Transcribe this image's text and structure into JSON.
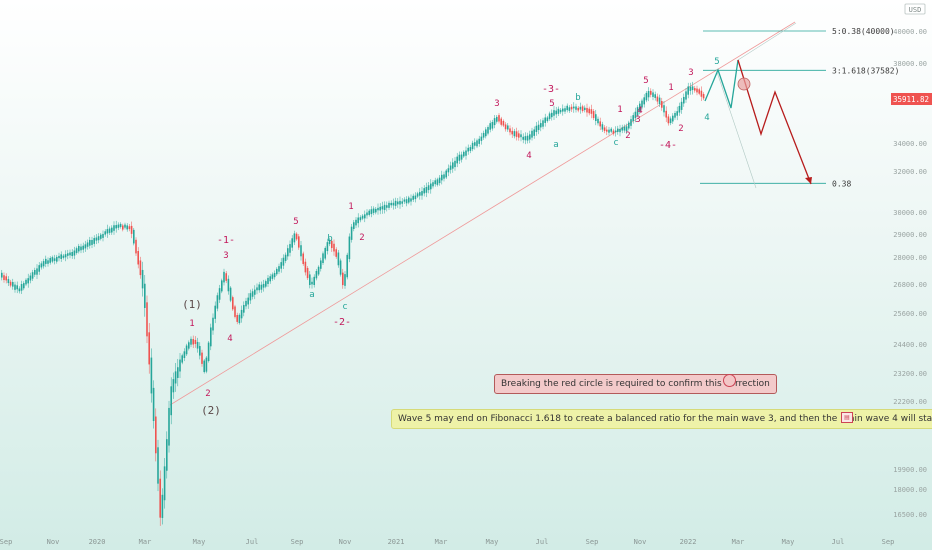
{
  "chart_data": {
    "type": "candlestick",
    "title": "",
    "currency_badge": "USD",
    "price_label": "35911.82",
    "yticks": [
      "40000.00",
      "38000.00",
      "36000.00",
      "34000.00",
      "32000.00",
      "30000.00",
      "29000.00",
      "28000.00",
      "26800.00",
      "25600.00",
      "24400.00",
      "23200.00",
      "22200.00",
      "21400.00",
      "19900.00",
      "18000.00",
      "16500.00"
    ],
    "xticks": [
      "Sep",
      "Nov",
      "2020",
      "Mar",
      "May",
      "Jul",
      "Sep",
      "Nov",
      "2021",
      "Mar",
      "May",
      "Jul",
      "Sep",
      "Nov",
      "2022",
      "Mar",
      "May",
      "Jul",
      "Sep"
    ],
    "fib_levels": [
      {
        "label": "5:0.38(40000)",
        "value": 40000
      },
      {
        "label": "3:1.618(37582)",
        "value": 37582
      },
      {
        "label": "0.38",
        "value": 31400
      }
    ],
    "wave_labels": [
      {
        "text": "(1)",
        "color": "#5a4848"
      },
      {
        "text": "1",
        "color": "#c2185b"
      },
      {
        "text": "2",
        "color": "#c2185b"
      },
      {
        "text": "(2)",
        "color": "#5a4848"
      },
      {
        "text": "-1-",
        "color": "#c2185b"
      },
      {
        "text": "3",
        "color": "#c2185b"
      },
      {
        "text": "4",
        "color": "#c2185b"
      },
      {
        "text": "5",
        "color": "#c2185b"
      },
      {
        "text": "b",
        "color": "#26a69a"
      },
      {
        "text": "a",
        "color": "#26a69a"
      },
      {
        "text": "c",
        "color": "#26a69a"
      },
      {
        "text": "-2-",
        "color": "#c2185b"
      },
      {
        "text": "1",
        "color": "#c2185b"
      },
      {
        "text": "2",
        "color": "#c2185b"
      },
      {
        "text": "3",
        "color": "#c2185b"
      },
      {
        "text": "4",
        "color": "#c2185b"
      },
      {
        "text": "-3-",
        "color": "#c2185b"
      },
      {
        "text": "5",
        "color": "#c2185b"
      },
      {
        "text": "a",
        "color": "#26a69a"
      },
      {
        "text": "b",
        "color": "#26a69a"
      },
      {
        "text": "1",
        "color": "#c2185b"
      },
      {
        "text": "2",
        "color": "#c2185b"
      },
      {
        "text": "c",
        "color": "#26a69a"
      },
      {
        "text": "3",
        "color": "#c2185b"
      },
      {
        "text": "4",
        "color": "#c2185b"
      },
      {
        "text": "5",
        "color": "#c2185b"
      },
      {
        "text": "-4-",
        "color": "#c2185b"
      },
      {
        "text": "1",
        "color": "#c2185b"
      },
      {
        "text": "2",
        "color": "#c2185b"
      },
      {
        "text": "3",
        "color": "#c2185b"
      },
      {
        "text": "4",
        "color": "#26a69a"
      },
      {
        "text": "5",
        "color": "#26a69a"
      }
    ],
    "colors": {
      "up": "#26a69a",
      "down": "#ef5350",
      "projection_up": "#26a69a",
      "projection_down": "#b71c1c",
      "fib": "#26a69a",
      "trendline": "#ef9a9a"
    }
  },
  "notes": {
    "red": "Breaking the red circle is required to confirm this correction",
    "yellow": "Wave 5 may end on Fibonacci 1.618 to create a balanced ratio for the main wave 3, and then the main wave 4 will start"
  }
}
